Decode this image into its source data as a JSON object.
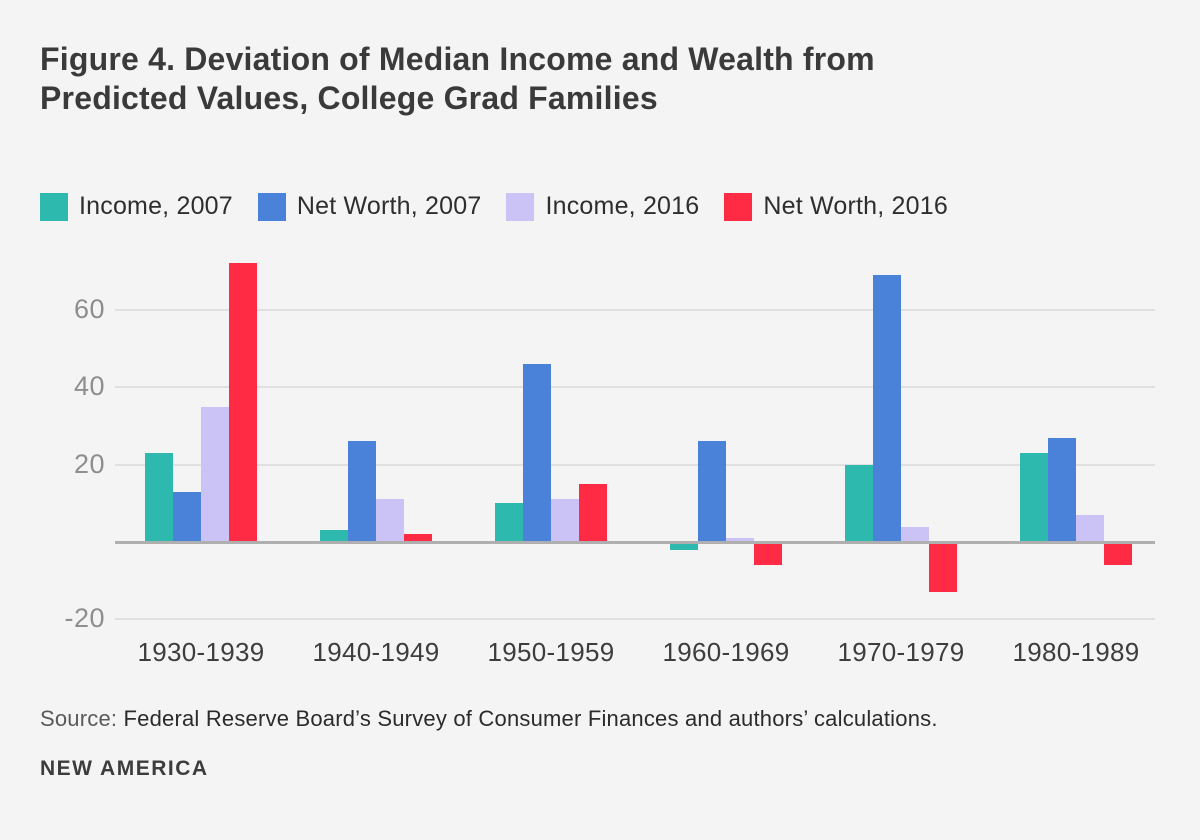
{
  "title": {
    "line1": "Figure 4. Deviation of Median Income and Wealth from",
    "line2": "Predicted Values, College Grad Families"
  },
  "chart_data": {
    "type": "bar",
    "title": "Figure 4. Deviation of Median Income and Wealth from Predicted Values, College Grad Families",
    "categories": [
      "1930-1939",
      "1940-1949",
      "1950-1959",
      "1960-1969",
      "1970-1979",
      "1980-1989"
    ],
    "series": [
      {
        "name": "Income, 2007",
        "color": "#2EB9AE",
        "values": [
          23,
          3,
          10,
          -2,
          20,
          23
        ]
      },
      {
        "name": "Net Worth, 2007",
        "color": "#4A81D9",
        "values": [
          13,
          26,
          46,
          26,
          69,
          27
        ]
      },
      {
        "name": "Income, 2016",
        "color": "#CBC3F6",
        "values": [
          35,
          11,
          11,
          1,
          4,
          7
        ]
      },
      {
        "name": "Net Worth, 2016",
        "color": "#FF2B45",
        "values": [
          72,
          2,
          15,
          -6,
          -13,
          -6
        ]
      }
    ],
    "xlabel": "",
    "ylabel": "",
    "y_ticks": [
      60,
      40,
      20,
      -20
    ],
    "ylim": [
      -26,
      76
    ],
    "grid": true,
    "baseline_value": 0,
    "legend_position": "top"
  },
  "source": {
    "label": "Source:",
    "text": "Federal Reserve Board’s Survey of Consumer Finances and authors’ calculations."
  },
  "footer": {
    "brand": "NEW AMERICA"
  },
  "colors": {
    "background": "#F4F4F4",
    "gridline": "#E0E0E0",
    "baseline": "#AFAFAF",
    "title_text": "#3A3A3A",
    "axis_text": "#8E8E8E",
    "category_text": "#3D3D3D"
  }
}
